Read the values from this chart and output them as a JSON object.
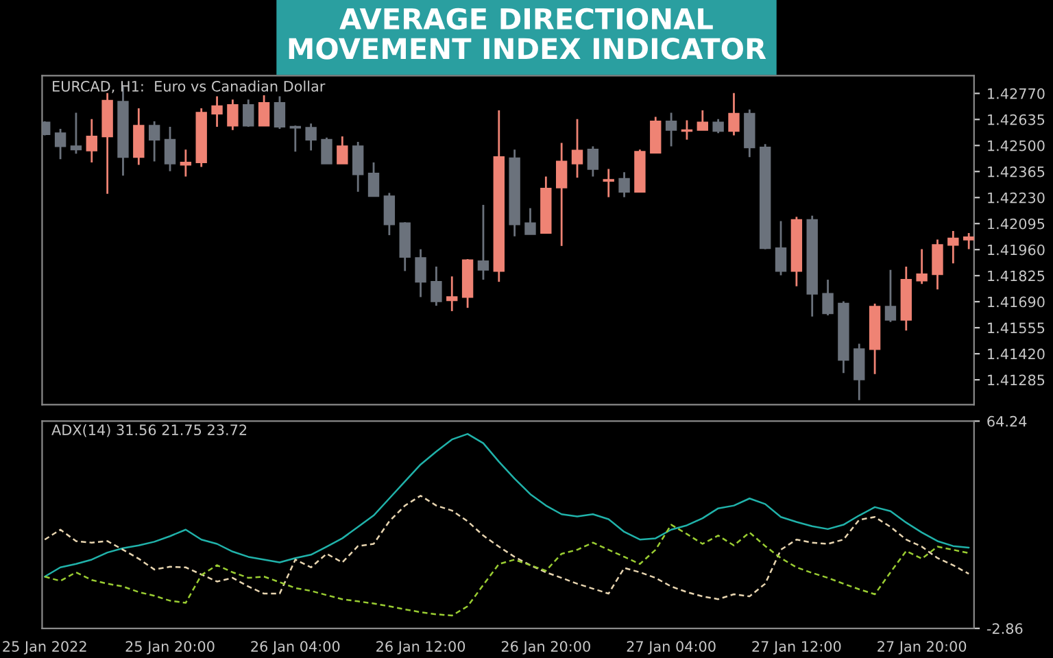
{
  "chart_data": [
    {
      "type": "candlestick",
      "title": "AVERAGE DIRECTIONAL\nMOVEMENT INDEX INDICATOR",
      "subtitle": "EURCAD, H1:  Euro vs Canadian Dollar",
      "x": [
        "2022-01-25T12:00",
        "2022-01-25T13:00",
        "2022-01-25T14:00",
        "2022-01-25T15:00",
        "2022-01-25T16:00",
        "2022-01-25T17:00",
        "2022-01-25T18:00",
        "2022-01-25T19:00",
        "2022-01-25T20:00",
        "2022-01-25T21:00",
        "2022-01-25T22:00",
        "2022-01-25T23:00",
        "2022-01-26T00:00",
        "2022-01-26T01:00",
        "2022-01-26T02:00",
        "2022-01-26T03:00",
        "2022-01-26T04:00",
        "2022-01-26T05:00",
        "2022-01-26T06:00",
        "2022-01-26T07:00",
        "2022-01-26T08:00",
        "2022-01-26T09:00",
        "2022-01-26T10:00",
        "2022-01-26T11:00",
        "2022-01-26T12:00",
        "2022-01-26T13:00",
        "2022-01-26T14:00",
        "2022-01-26T15:00",
        "2022-01-26T16:00",
        "2022-01-26T17:00",
        "2022-01-26T18:00",
        "2022-01-26T19:00",
        "2022-01-26T20:00",
        "2022-01-26T21:00",
        "2022-01-26T22:00",
        "2022-01-26T23:00",
        "2022-01-27T00:00",
        "2022-01-27T01:00",
        "2022-01-27T02:00",
        "2022-01-27T03:00",
        "2022-01-27T04:00",
        "2022-01-27T05:00",
        "2022-01-27T06:00",
        "2022-01-27T07:00",
        "2022-01-27T08:00",
        "2022-01-27T09:00",
        "2022-01-27T10:00",
        "2022-01-27T11:00",
        "2022-01-27T12:00",
        "2022-01-27T13:00",
        "2022-01-27T14:00",
        "2022-01-27T15:00",
        "2022-01-27T16:00",
        "2022-01-27T17:00",
        "2022-01-27T18:00",
        "2022-01-27T19:00",
        "2022-01-27T20:00",
        "2022-01-27T21:00",
        "2022-01-27T22:00",
        "2022-01-27T23:00"
      ],
      "ohlc": [
        [
          1.4262,
          1.42625,
          1.42552,
          1.42558
        ],
        [
          1.42564,
          1.42586,
          1.42429,
          1.42496
        ],
        [
          1.42496,
          1.4267,
          1.42457,
          1.42479
        ],
        [
          1.42474,
          1.42637,
          1.42412,
          1.42547
        ],
        [
          1.42547,
          1.42772,
          1.42249,
          1.42732
        ],
        [
          1.42727,
          1.42805,
          1.42344,
          1.4244
        ],
        [
          1.4244,
          1.42693,
          1.424,
          1.42603
        ],
        [
          1.42603,
          1.42625,
          1.42417,
          1.4253
        ],
        [
          1.4253,
          1.42597,
          1.42367,
          1.42406
        ],
        [
          1.424,
          1.42479,
          1.42339,
          1.42412
        ],
        [
          1.42412,
          1.42693,
          1.42389,
          1.4267
        ],
        [
          1.42665,
          1.42755,
          1.42597,
          1.42704
        ],
        [
          1.42603,
          1.42738,
          1.4258,
          1.4271
        ],
        [
          1.4271,
          1.42738,
          1.42597,
          1.42603
        ],
        [
          1.42603,
          1.4276,
          1.42603,
          1.42721
        ],
        [
          1.42721,
          1.42755,
          1.42586,
          1.42597
        ],
        [
          1.42597,
          1.42603,
          1.42468,
          1.42592
        ],
        [
          1.42592,
          1.42614,
          1.42474,
          1.4253
        ],
        [
          1.4253,
          1.42541,
          1.42406,
          1.42406
        ],
        [
          1.42406,
          1.42547,
          1.42406,
          1.42496
        ],
        [
          1.42496,
          1.42519,
          1.4226,
          1.4235
        ],
        [
          1.42355,
          1.42412,
          1.42237,
          1.42237
        ],
        [
          1.42237,
          1.42254,
          1.42035,
          1.42091
        ],
        [
          1.42097,
          1.42102,
          1.41849,
          1.41922
        ],
        [
          1.41917,
          1.41962,
          1.41714,
          1.41793
        ],
        [
          1.41793,
          1.41872,
          1.41669,
          1.41692
        ],
        [
          1.41697,
          1.41821,
          1.41641,
          1.41714
        ],
        [
          1.41714,
          1.41911,
          1.41658,
          1.41905
        ],
        [
          1.419,
          1.42192,
          1.41804,
          1.41855
        ],
        [
          1.41849,
          1.42682,
          1.41793,
          1.4244
        ],
        [
          1.42434,
          1.42479,
          1.42029,
          1.42091
        ],
        [
          1.42097,
          1.42175,
          1.4204,
          1.4204
        ],
        [
          1.42046,
          1.42339,
          1.42046,
          1.42277
        ],
        [
          1.42282,
          1.42513,
          1.41979,
          1.42417
        ],
        [
          1.42406,
          1.42637,
          1.42333,
          1.42474
        ],
        [
          1.42479,
          1.42496,
          1.42339,
          1.42378
        ],
        [
          1.42316,
          1.42378,
          1.42232,
          1.42322
        ],
        [
          1.42327,
          1.42361,
          1.42232,
          1.4226
        ],
        [
          1.4226,
          1.42479,
          1.4226,
          1.42468
        ],
        [
          1.42462,
          1.42648,
          1.42462,
          1.42625
        ],
        [
          1.42625,
          1.4267,
          1.42496,
          1.4258
        ],
        [
          1.42575,
          1.42631,
          1.4253,
          1.4258
        ],
        [
          1.4258,
          1.42682,
          1.4258,
          1.4262
        ],
        [
          1.4262,
          1.42637,
          1.42564,
          1.42575
        ],
        [
          1.42575,
          1.42772,
          1.42552,
          1.42665
        ],
        [
          1.42665,
          1.42687,
          1.4244,
          1.4249
        ],
        [
          1.4249,
          1.42507,
          1.41962,
          1.41967
        ],
        [
          1.41967,
          1.42108,
          1.41827,
          1.41849
        ],
        [
          1.41849,
          1.4213,
          1.4177,
          1.42114
        ],
        [
          1.42114,
          1.42136,
          1.41613,
          1.41731
        ],
        [
          1.41731,
          1.41804,
          1.41619,
          1.4163
        ],
        [
          1.4168,
          1.41692,
          1.4132,
          1.41388
        ],
        [
          1.41444,
          1.41472,
          1.4118,
          1.41287
        ],
        [
          1.41444,
          1.4168,
          1.41315,
          1.41664
        ],
        [
          1.41664,
          1.41855,
          1.41585,
          1.41596
        ],
        [
          1.41596,
          1.41872,
          1.4154,
          1.41804
        ],
        [
          1.41799,
          1.41962,
          1.41782,
          1.41832
        ],
        [
          1.41832,
          1.42012,
          1.41754,
          1.41984
        ],
        [
          1.41984,
          1.42057,
          1.41889,
          1.42018
        ],
        [
          1.42012,
          1.42046,
          1.41962,
          1.42024
        ]
      ],
      "colors": [
        "#6b727c",
        "#6b727c",
        "#6b727c",
        "#ef8374",
        "#ef8374",
        "#6b727c",
        "#ef8374",
        "#6b727c",
        "#6b727c",
        "#ef8374",
        "#ef8374",
        "#ef8374",
        "#ef8374",
        "#6b727c",
        "#ef8374",
        "#6b727c",
        "#6b727c",
        "#6b727c",
        "#6b727c",
        "#ef8374",
        "#6b727c",
        "#6b727c",
        "#6b727c",
        "#6b727c",
        "#6b727c",
        "#6b727c",
        "#ef8374",
        "#ef8374",
        "#6b727c",
        "#ef8374",
        "#6b727c",
        "#6b727c",
        "#ef8374",
        "#ef8374",
        "#ef8374",
        "#6b727c",
        "#ef8374",
        "#6b727c",
        "#ef8374",
        "#ef8374",
        "#6b727c",
        "#ef8374",
        "#ef8374",
        "#6b727c",
        "#ef8374",
        "#6b727c",
        "#6b727c",
        "#6b727c",
        "#ef8374",
        "#6b727c",
        "#6b727c",
        "#6b727c",
        "#6b727c",
        "#ef8374",
        "#6b727c",
        "#ef8374",
        "#ef8374",
        "#ef8374",
        "#ef8374",
        "#ef8374"
      ],
      "xlim": [
        "2022-01-25T11:50",
        "2022-01-27T23:20"
      ],
      "ylim": [
        1.41156,
        1.42862
      ],
      "yticks": [
        {
          "value": 1.4277,
          "label": "1.42770"
        },
        {
          "value": 1.42635,
          "label": "1.42635"
        },
        {
          "value": 1.425,
          "label": "1.42500"
        },
        {
          "value": 1.42365,
          "label": "1.42365"
        },
        {
          "value": 1.4223,
          "label": "1.42230"
        },
        {
          "value": 1.42095,
          "label": "1.42095"
        },
        {
          "value": 1.4196,
          "label": "1.41960"
        },
        {
          "value": 1.41825,
          "label": "1.41825"
        },
        {
          "value": 1.4169,
          "label": "1.41690"
        },
        {
          "value": 1.41555,
          "label": "1.41555"
        },
        {
          "value": 1.4142,
          "label": "1.41420"
        },
        {
          "value": 1.41285,
          "label": "1.41285"
        }
      ],
      "tick_labels": "y",
      "grid": false
    },
    {
      "type": "line",
      "subtitle": "ADX(14) 31.56 21.75 23.72",
      "x": [
        "2022-01-25T12:00",
        "2022-01-25T13:00",
        "2022-01-25T14:00",
        "2022-01-25T15:00",
        "2022-01-25T16:00",
        "2022-01-25T17:00",
        "2022-01-25T18:00",
        "2022-01-25T19:00",
        "2022-01-25T20:00",
        "2022-01-25T21:00",
        "2022-01-25T22:00",
        "2022-01-25T23:00",
        "2022-01-26T00:00",
        "2022-01-26T01:00",
        "2022-01-26T02:00",
        "2022-01-26T03:00",
        "2022-01-26T04:00",
        "2022-01-26T05:00",
        "2022-01-26T06:00",
        "2022-01-26T07:00",
        "2022-01-26T08:00",
        "2022-01-26T09:00",
        "2022-01-26T10:00",
        "2022-01-26T11:00",
        "2022-01-26T12:00",
        "2022-01-26T13:00",
        "2022-01-26T14:00",
        "2022-01-26T15:00",
        "2022-01-26T16:00",
        "2022-01-26T17:00",
        "2022-01-26T18:00",
        "2022-01-26T19:00",
        "2022-01-26T20:00",
        "2022-01-26T21:00",
        "2022-01-26T22:00",
        "2022-01-26T23:00",
        "2022-01-27T00:00",
        "2022-01-27T01:00",
        "2022-01-27T02:00",
        "2022-01-27T03:00",
        "2022-01-27T04:00",
        "2022-01-27T05:00",
        "2022-01-27T06:00",
        "2022-01-27T07:00",
        "2022-01-27T08:00",
        "2022-01-27T09:00",
        "2022-01-27T10:00",
        "2022-01-27T11:00",
        "2022-01-27T12:00",
        "2022-01-27T13:00",
        "2022-01-27T14:00",
        "2022-01-27T15:00",
        "2022-01-27T16:00",
        "2022-01-27T17:00",
        "2022-01-27T18:00",
        "2022-01-27T19:00",
        "2022-01-27T20:00",
        "2022-01-27T21:00",
        "2022-01-27T22:00",
        "2022-01-27T23:00"
      ],
      "series": [
        {
          "color": "#20b2aa",
          "line_style": "solid",
          "values": [
            13.9,
            16.9,
            18.0,
            19.4,
            21.7,
            23.1,
            24.0,
            25.2,
            27.0,
            29.1,
            25.9,
            24.5,
            22.0,
            20.3,
            19.4,
            18.5,
            19.9,
            21.0,
            23.6,
            26.3,
            30.0,
            33.7,
            39.2,
            44.7,
            50.2,
            54.4,
            58.3,
            60.1,
            57.1,
            51.1,
            45.6,
            40.6,
            36.9,
            34.1,
            33.4,
            34.1,
            32.5,
            28.4,
            25.9,
            26.3,
            29.1,
            30.5,
            32.8,
            36.0,
            36.9,
            39.2,
            37.4,
            33.2,
            31.6,
            30.2,
            29.3,
            30.7,
            33.7,
            36.4,
            35.1,
            31.4,
            28.2,
            25.4,
            23.8,
            23.3
          ]
        },
        {
          "color": "#e8d5b0",
          "line_style": "dashed",
          "values": [
            25.9,
            29.1,
            25.4,
            24.9,
            25.4,
            22.6,
            19.7,
            16.2,
            17.1,
            16.9,
            14.6,
            12.3,
            13.5,
            10.7,
            8.4,
            8.4,
            19.4,
            16.9,
            21.3,
            18.5,
            23.8,
            24.5,
            31.8,
            36.9,
            40.1,
            36.9,
            35.3,
            31.8,
            27.2,
            23.6,
            20.3,
            17.6,
            15.3,
            13.5,
            11.6,
            10.0,
            8.4,
            16.7,
            15.3,
            13.5,
            10.7,
            8.9,
            7.5,
            6.6,
            8.2,
            7.5,
            11.6,
            22.6,
            25.9,
            24.9,
            24.5,
            25.9,
            32.3,
            33.2,
            30.0,
            25.9,
            23.6,
            19.9,
            17.6,
            14.8
          ]
        },
        {
          "color": "#9acd32",
          "line_style": "dashed",
          "values": [
            13.9,
            12.5,
            15.3,
            12.8,
            11.6,
            10.7,
            8.9,
            7.7,
            6.1,
            5.4,
            14.4,
            17.6,
            15.3,
            13.5,
            13.9,
            12.1,
            10.2,
            9.3,
            7.9,
            6.6,
            5.9,
            5.2,
            4.3,
            3.3,
            2.4,
            1.7,
            1.3,
            4.3,
            11.2,
            18.0,
            19.4,
            17.6,
            15.8,
            21.3,
            22.6,
            24.9,
            22.6,
            20.3,
            18.0,
            22.6,
            30.7,
            27.7,
            24.5,
            27.2,
            24.0,
            28.2,
            23.8,
            19.9,
            16.9,
            15.1,
            13.5,
            11.6,
            9.8,
            8.2,
            15.3,
            22.2,
            19.7,
            23.6,
            22.6,
            21.5
          ]
        }
      ],
      "xlim": [
        "2022-01-25T11:50",
        "2022-01-27T23:20"
      ],
      "ylim": [
        -2.86,
        64.24
      ],
      "xticks": [
        {
          "value": "2022-01-25T12:00",
          "label": "25 Jan 2022"
        },
        {
          "value": "2022-01-25T20:00",
          "label": "25 Jan 20:00"
        },
        {
          "value": "2022-01-26T04:00",
          "label": "26 Jan 04:00"
        },
        {
          "value": "2022-01-26T12:00",
          "label": "26 Jan 12:00"
        },
        {
          "value": "2022-01-26T20:00",
          "label": "26 Jan 20:00"
        },
        {
          "value": "2022-01-27T04:00",
          "label": "27 Jan 04:00"
        },
        {
          "value": "2022-01-27T12:00",
          "label": "27 Jan 12:00"
        },
        {
          "value": "2022-01-27T20:00",
          "label": "27 Jan 20:00"
        }
      ],
      "yticks": [
        64.24,
        -2.86
      ],
      "grid": false
    }
  ]
}
